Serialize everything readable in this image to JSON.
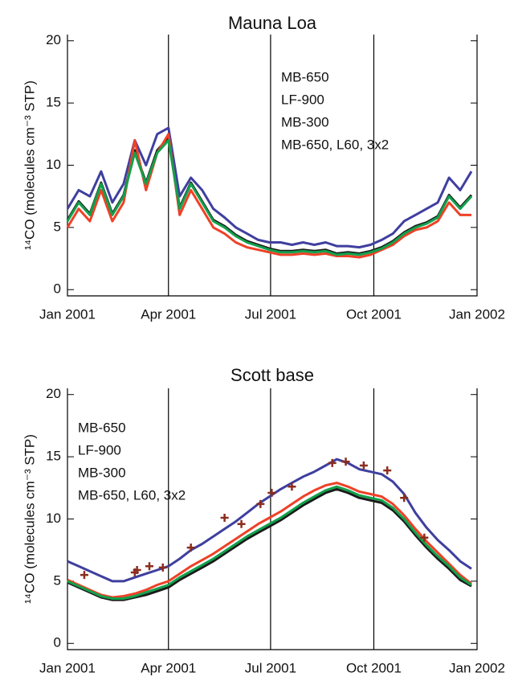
{
  "chart_data": [
    {
      "type": "line",
      "title": "Mauna Loa",
      "ylabel": "¹⁴CO (molecules cm⁻³ STP)",
      "x": [
        0,
        10,
        20,
        30,
        40,
        50,
        60,
        70,
        80,
        90,
        100,
        110,
        120,
        130,
        140,
        150,
        160,
        170,
        180,
        190,
        200,
        210,
        220,
        230,
        240,
        250,
        260,
        270,
        280,
        290,
        300,
        310,
        320,
        330,
        340,
        350,
        360
      ],
      "xlim": [
        0,
        365
      ],
      "xticks": [
        {
          "value": 0,
          "label": "Jan 2001"
        },
        {
          "value": 90,
          "label": "Apr 2001"
        },
        {
          "value": 181,
          "label": "Jul 2001"
        },
        {
          "value": 273,
          "label": "Oct 2001"
        },
        {
          "value": 365,
          "label": "Jan 2002"
        }
      ],
      "ylim": [
        -0.5,
        20.5
      ],
      "yticks": [
        0,
        5,
        10,
        15,
        20
      ],
      "xgrid": true,
      "legend": "top-center",
      "series": [
        {
          "name": "MB-650",
          "color": "#1a1a1a",
          "values": [
            5.6,
            7.1,
            6.1,
            8.6,
            6.1,
            7.6,
            11.2,
            8.6,
            11.2,
            12.2,
            6.6,
            8.6,
            7.1,
            5.6,
            5.1,
            4.4,
            3.9,
            3.6,
            3.3,
            3.1,
            3.1,
            3.2,
            3.1,
            3.2,
            2.9,
            3.0,
            2.9,
            3.1,
            3.4,
            3.9,
            4.6,
            5.1,
            5.4,
            5.9,
            7.6,
            6.6,
            7.6
          ]
        },
        {
          "name": "LF-900",
          "color": "#3f3f9f",
          "values": [
            6.5,
            8,
            7.5,
            9.5,
            7,
            8.5,
            12,
            10,
            12.5,
            13,
            7.5,
            9,
            8,
            6.5,
            5.8,
            5,
            4.5,
            4,
            3.8,
            3.8,
            3.6,
            3.8,
            3.6,
            3.8,
            3.5,
            3.5,
            3.4,
            3.6,
            4.0,
            4.5,
            5.5,
            6,
            6.5,
            7,
            9,
            8,
            9.5
          ]
        },
        {
          "name": "MB-300",
          "color": "#13a04c",
          "values": [
            5.5,
            7,
            6,
            8.5,
            6,
            7.5,
            11,
            8.5,
            11,
            12,
            6.5,
            8.5,
            7,
            5.5,
            5,
            4.3,
            3.8,
            3.5,
            3.2,
            3,
            3,
            3.1,
            3,
            3.1,
            2.8,
            2.9,
            2.8,
            3,
            3.3,
            3.8,
            4.5,
            5,
            5.3,
            5.8,
            7.5,
            6.5,
            7.5
          ]
        },
        {
          "name": "MB-650, L60, 3x2",
          "color": "#ee4127",
          "values": [
            5,
            6.5,
            5.5,
            8,
            5.5,
            7,
            12,
            8,
            11,
            12.5,
            6,
            8,
            6.5,
            5,
            4.5,
            3.8,
            3.4,
            3.2,
            3.0,
            2.8,
            2.8,
            2.9,
            2.8,
            2.9,
            2.7,
            2.7,
            2.6,
            2.8,
            3.2,
            3.6,
            4.3,
            4.8,
            5,
            5.5,
            7,
            6,
            6
          ]
        }
      ]
    },
    {
      "type": "line",
      "title": "Scott base",
      "ylabel": "¹⁴CO (molecules cm⁻³ STP)",
      "x": [
        0,
        10,
        20,
        30,
        40,
        50,
        60,
        70,
        80,
        90,
        100,
        110,
        120,
        130,
        140,
        150,
        160,
        170,
        180,
        190,
        200,
        210,
        220,
        230,
        240,
        250,
        260,
        270,
        280,
        290,
        300,
        310,
        320,
        330,
        340,
        350,
        360
      ],
      "xlim": [
        0,
        365
      ],
      "xticks": [
        {
          "value": 0,
          "label": "Jan 2001"
        },
        {
          "value": 90,
          "label": "Apr 2001"
        },
        {
          "value": 181,
          "label": "Jul 2001"
        },
        {
          "value": 273,
          "label": "Oct 2001"
        },
        {
          "value": 365,
          "label": "Jan 2002"
        }
      ],
      "ylim": [
        -0.5,
        20.5
      ],
      "yticks": [
        0,
        5,
        10,
        15,
        20
      ],
      "xgrid": true,
      "legend": "top-left",
      "series": [
        {
          "name": "MB-650",
          "color": "#1a1a1a",
          "values": [
            4.9,
            4.5,
            4.1,
            3.7,
            3.5,
            3.5,
            3.7,
            3.9,
            4.2,
            4.5,
            5.1,
            5.6,
            6.1,
            6.6,
            7.2,
            7.8,
            8.4,
            8.9,
            9.4,
            9.9,
            10.5,
            11.1,
            11.6,
            12.1,
            12.4,
            12.1,
            11.7,
            11.5,
            11.3,
            10.7,
            9.8,
            8.7,
            7.7,
            6.8,
            6.0,
            5.1,
            4.6
          ]
        },
        {
          "name": "LF-900",
          "color": "#3f3f9f",
          "values": [
            6.6,
            6.2,
            5.8,
            5.4,
            5.0,
            5.0,
            5.3,
            5.6,
            5.9,
            6.2,
            6.8,
            7.5,
            8.0,
            8.6,
            9.2,
            9.8,
            10.5,
            11.2,
            11.8,
            12.4,
            12.9,
            13.4,
            13.8,
            14.3,
            14.8,
            14.5,
            14.0,
            13.8,
            13.6,
            13.0,
            12.0,
            10.5,
            9.3,
            8.3,
            7.5,
            6.6,
            6.0
          ]
        },
        {
          "name": "MB-300",
          "color": "#13a04c",
          "values": [
            5.0,
            4.6,
            4.2,
            3.8,
            3.6,
            3.6,
            3.8,
            4.1,
            4.4,
            4.7,
            5.3,
            5.8,
            6.3,
            6.8,
            7.4,
            8.0,
            8.6,
            9.1,
            9.6,
            10.1,
            10.7,
            11.3,
            11.8,
            12.3,
            12.6,
            12.3,
            11.9,
            11.7,
            11.5,
            10.9,
            10.0,
            8.9,
            7.9,
            7.0,
            6.2,
            5.3,
            4.7
          ]
        },
        {
          "name": "MB-650, L60, 3x2",
          "color": "#ee4127",
          "values": [
            5.1,
            4.7,
            4.3,
            3.9,
            3.7,
            3.8,
            4.0,
            4.3,
            4.7,
            5.0,
            5.6,
            6.2,
            6.7,
            7.2,
            7.8,
            8.4,
            9.0,
            9.6,
            10.1,
            10.6,
            11.2,
            11.8,
            12.3,
            12.7,
            12.9,
            12.6,
            12.2,
            12.0,
            11.8,
            11.2,
            10.3,
            9.2,
            8.2,
            7.3,
            6.4,
            5.5,
            4.8
          ]
        }
      ],
      "observations": {
        "color": "#8b2d1e",
        "marker": "+",
        "x": [
          15,
          60,
          62,
          73,
          85,
          110,
          140,
          155,
          172,
          182,
          200,
          236,
          248,
          264,
          285,
          300,
          318
        ],
        "values": [
          5.5,
          5.7,
          5.9,
          6.2,
          6.1,
          7.7,
          10.1,
          9.6,
          11.2,
          12.1,
          12.6,
          14.5,
          14.6,
          14.3,
          13.9,
          11.7,
          8.5
        ]
      }
    }
  ]
}
